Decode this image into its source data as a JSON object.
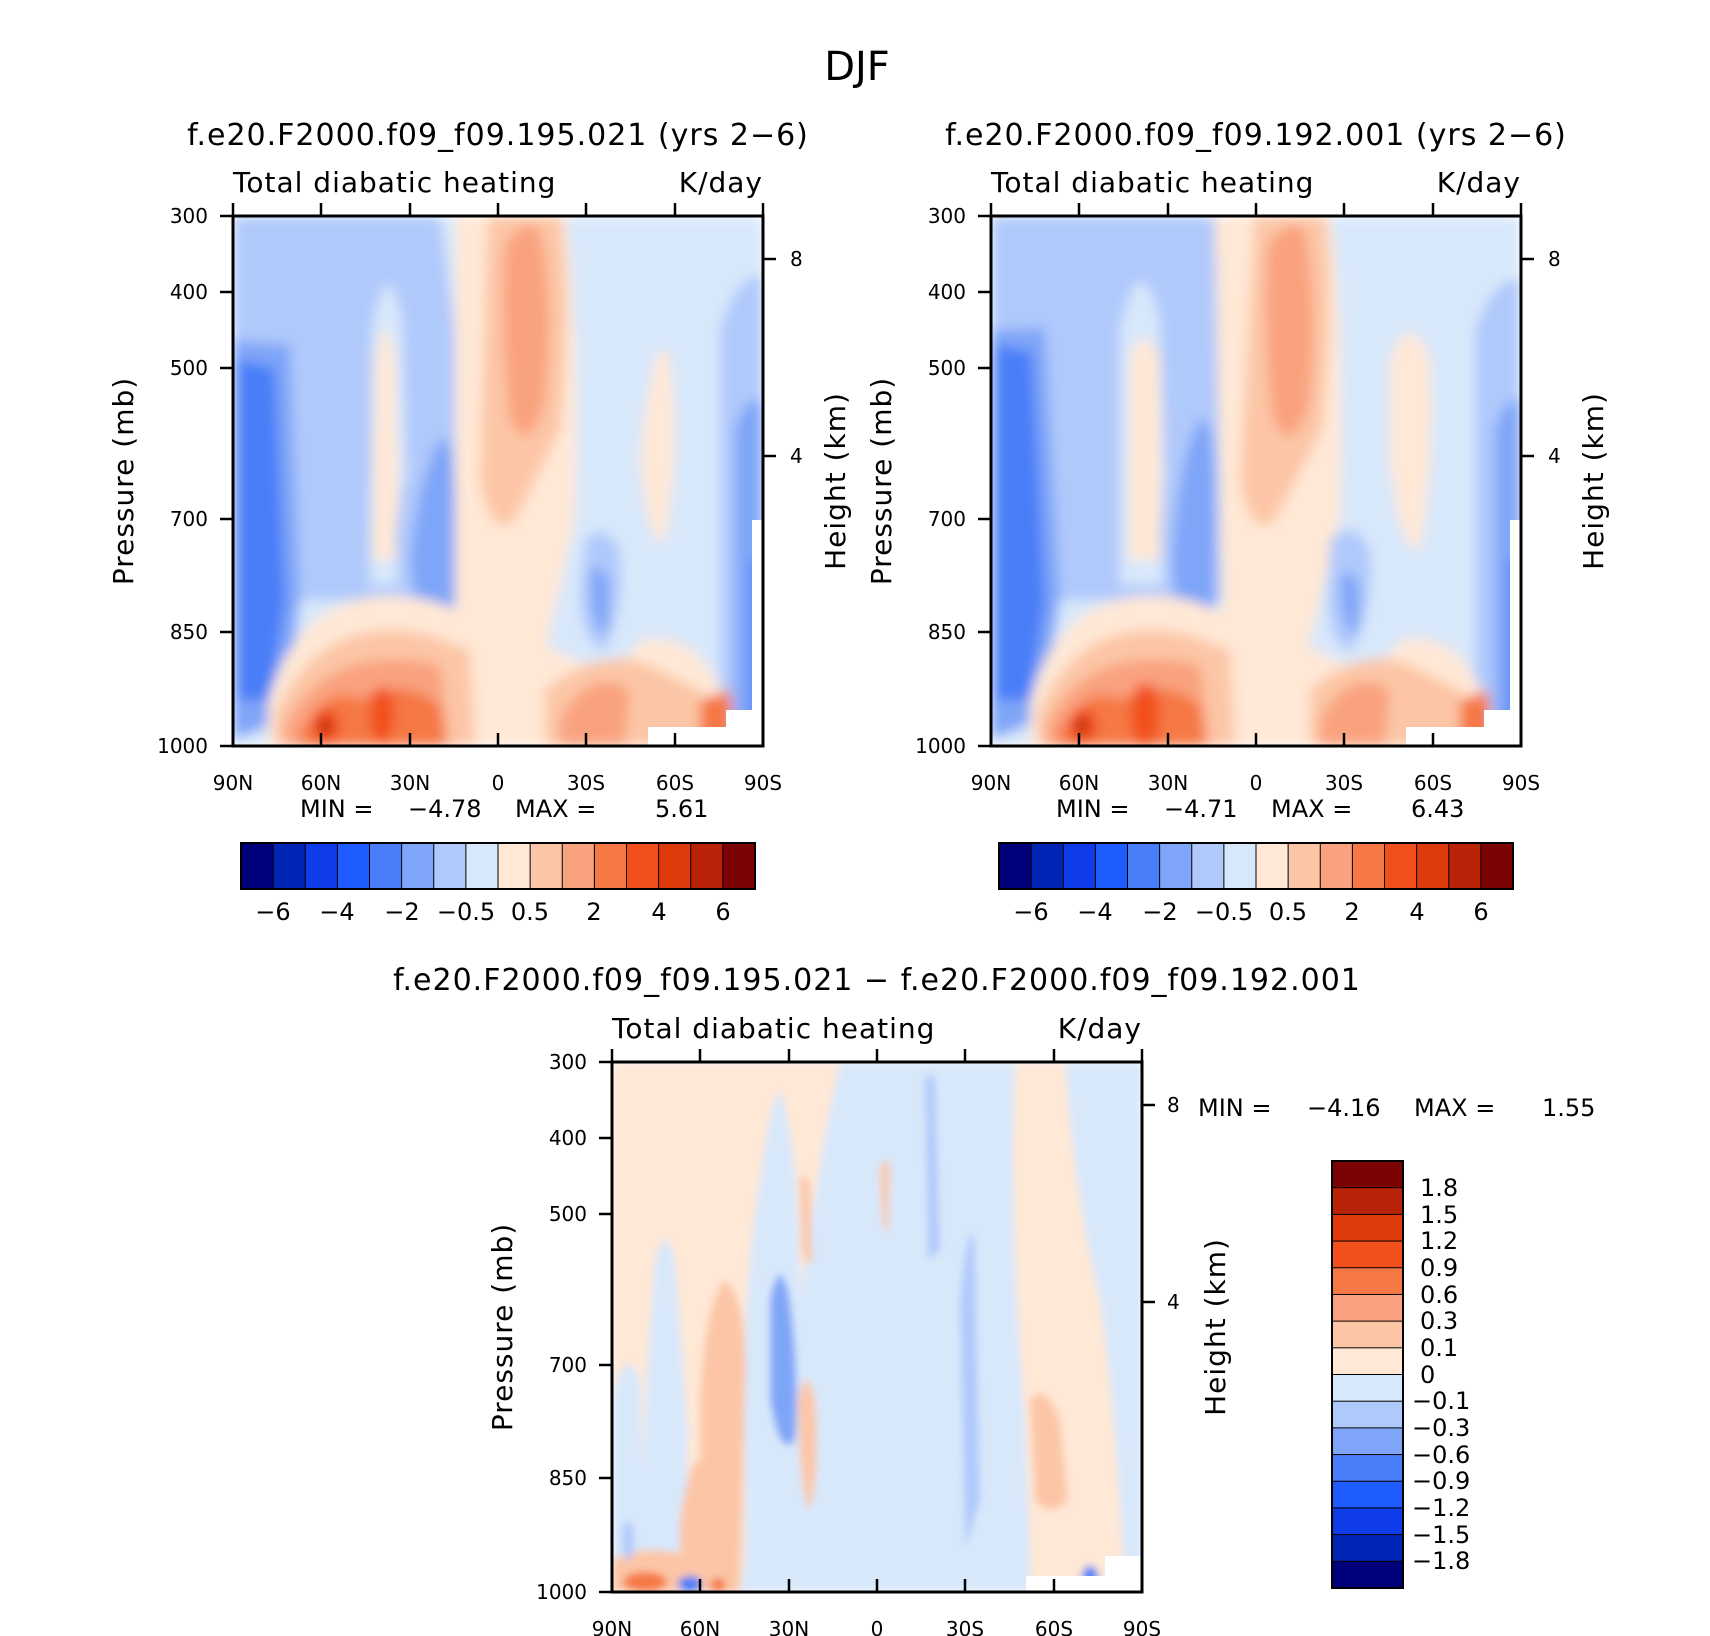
{
  "figure_title": "DJF",
  "chart_data": [
    {
      "type": "heatmap",
      "title": "f.e20.F2000.f09_f09.195.021 (yrs 2−6)",
      "subtitle_left": "Total diabatic heating",
      "subtitle_right": "K/day",
      "xlabel": "",
      "ylabel": "Pressure (mb)",
      "y2label": "Height (km)",
      "x_ticks": [
        "90N",
        "60N",
        "30N",
        "0",
        "30S",
        "60S",
        "90S"
      ],
      "y_ticks": [
        "300",
        "400",
        "500",
        "700",
        "850",
        "1000"
      ],
      "y2_ticks": [
        "8",
        "4"
      ],
      "min_label": "MIN =",
      "min_value": "−4.78",
      "max_label": "MAX =",
      "max_value": "5.61",
      "colorbar_labels": [
        "−6",
        "−4",
        "−2",
        "−0.5",
        "0.5",
        "2",
        "4",
        "6"
      ],
      "colors": [
        "#00007a",
        "#0024b4",
        "#0d3ce8",
        "#1f5cff",
        "#4a7ef8",
        "#7fa5f8",
        "#b0c9fb",
        "#d8e8fb",
        "#ffe8d6",
        "#fcc6a6",
        "#f9a27f",
        "#f57845",
        "#f24f1d",
        "#de3a0b",
        "#b82207",
        "#7c0303"
      ]
    },
    {
      "type": "heatmap",
      "title": "f.e20.F2000.f09_f09.192.001 (yrs 2−6)",
      "subtitle_left": "Total diabatic heating",
      "subtitle_right": "K/day",
      "xlabel": "",
      "ylabel": "Pressure (mb)",
      "y2label": "Height (km)",
      "x_ticks": [
        "90N",
        "60N",
        "30N",
        "0",
        "30S",
        "60S",
        "90S"
      ],
      "y_ticks": [
        "300",
        "400",
        "500",
        "700",
        "850",
        "1000"
      ],
      "y2_ticks": [
        "8",
        "4"
      ],
      "min_label": "MIN =",
      "min_value": "−4.71",
      "max_label": "MAX =",
      "max_value": "6.43",
      "colorbar_labels": [
        "−6",
        "−4",
        "−2",
        "−0.5",
        "0.5",
        "2",
        "4",
        "6"
      ],
      "colors": [
        "#00007a",
        "#0024b4",
        "#0d3ce8",
        "#1f5cff",
        "#4a7ef8",
        "#7fa5f8",
        "#b0c9fb",
        "#d8e8fb",
        "#ffe8d6",
        "#fcc6a6",
        "#f9a27f",
        "#f57845",
        "#f24f1d",
        "#de3a0b",
        "#b82207",
        "#7c0303"
      ]
    },
    {
      "type": "heatmap",
      "title": "f.e20.F2000.f09_f09.195.021 − f.e20.F2000.f09_f09.192.001",
      "subtitle_left": "Total diabatic heating",
      "subtitle_right": "K/day",
      "xlabel": "",
      "ylabel": "Pressure (mb)",
      "y2label": "Height (km)",
      "x_ticks": [
        "90N",
        "60N",
        "30N",
        "0",
        "30S",
        "60S",
        "90S"
      ],
      "y_ticks": [
        "300",
        "400",
        "500",
        "700",
        "850",
        "1000"
      ],
      "y2_ticks": [
        "8",
        "4"
      ],
      "min_label": "MIN =",
      "min_value": "−4.16",
      "max_label": "MAX =",
      "max_value": "1.55",
      "colorbar_labels": [
        "1.8",
        "1.5",
        "1.2",
        "0.9",
        "0.6",
        "0.3",
        "0.1",
        "0",
        "−0.1",
        "−0.3",
        "−0.6",
        "−0.9",
        "−1.2",
        "−1.5",
        "−1.8"
      ],
      "colors": [
        "#7c0303",
        "#b82207",
        "#de3a0b",
        "#f24f1d",
        "#f57845",
        "#f9a27f",
        "#fcc6a6",
        "#ffe8d6",
        "#d8e8fb",
        "#b0c9fb",
        "#7fa5f8",
        "#4a7ef8",
        "#1f5cff",
        "#0d3ce8",
        "#0024b4",
        "#00007a"
      ]
    }
  ]
}
